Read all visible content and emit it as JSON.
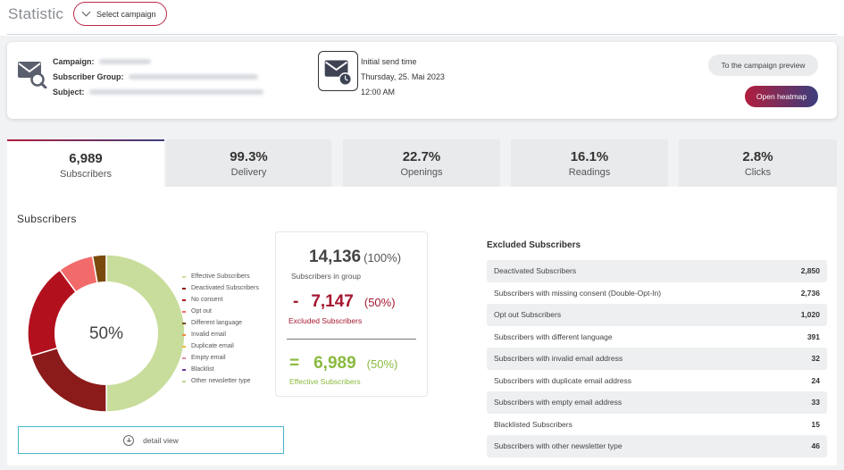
{
  "header": {
    "title": "Statistic",
    "select_campaign": "Select campaign"
  },
  "info": {
    "campaign_label": "Campaign:",
    "group_label": "Subscriber Group:",
    "subject_label": "Subject:",
    "send_title": "Initial send time",
    "send_date": "Thursday, 25. Mai 2023",
    "send_time": "12:00 AM",
    "preview_button": "To the campaign preview",
    "heatmap_button": "Open heatmap"
  },
  "tabs": [
    {
      "value": "6,989",
      "label": "Subscribers"
    },
    {
      "value": "99.3%",
      "label": "Delivery"
    },
    {
      "value": "22.7%",
      "label": "Openings"
    },
    {
      "value": "16.1%",
      "label": "Readings"
    },
    {
      "value": "2.8%",
      "label": "Clicks"
    }
  ],
  "subscribers": {
    "section_title": "Subscribers",
    "donut_center": "50%",
    "legend": [
      {
        "label": "Effective Subscribers",
        "color": "#c8dd9b"
      },
      {
        "label": "Deactivated Subscribers",
        "color": "#8b1a1a"
      },
      {
        "label": "No consent",
        "color": "#b3101e"
      },
      {
        "label": "Opt out",
        "color": "#f26b6b"
      },
      {
        "label": "Different language",
        "color": "#7a4a0c"
      },
      {
        "label": "Invalid email",
        "color": "#f08a40"
      },
      {
        "label": "Duplicate email",
        "color": "#e8c040"
      },
      {
        "label": "Empty email",
        "color": "#e58aa0"
      },
      {
        "label": "Blacklist",
        "color": "#6a3aa0"
      },
      {
        "label": "Other newsletter type",
        "color": "#b8d890"
      }
    ],
    "detail_button": "detail view"
  },
  "summary": {
    "total": "14,136",
    "total_pct": "(100%)",
    "group_label": "Subscribers in group",
    "excluded_sign": "-",
    "excluded": "7,147",
    "excluded_pct": "(50%)",
    "excluded_label": "Excluded Subscribers",
    "effective_sign": "=",
    "effective": "6,989",
    "effective_pct": "(50%)",
    "effective_label": "Effective Subscribers"
  },
  "excluded": {
    "title": "Excluded Subscribers",
    "rows": [
      {
        "label": "Deactivated Subscribers",
        "value": "2,850"
      },
      {
        "label": "Subscribers with missing consent (Double-Opt-In)",
        "value": "2,736"
      },
      {
        "label": "Opt out Subscribers",
        "value": "1,020"
      },
      {
        "label": "Subscribers with different language",
        "value": "391"
      },
      {
        "label": "Subscribers with invalid email address",
        "value": "32"
      },
      {
        "label": "Subscribers with duplicate email address",
        "value": "24"
      },
      {
        "label": "Subscribers with empty email address",
        "value": "33"
      },
      {
        "label": "Blacklisted Subscribers",
        "value": "15"
      },
      {
        "label": "Subscribers with other newsletter type",
        "value": "46"
      }
    ]
  },
  "chart_data": {
    "type": "pie",
    "categories": [
      "Effective Subscribers",
      "Deactivated Subscribers",
      "No consent",
      "Opt out",
      "Different language"
    ],
    "values": [
      6989,
      2850,
      2736,
      1020,
      391
    ],
    "colors": [
      "#c8dd9b",
      "#8b1a1a",
      "#b3101e",
      "#f26b6b",
      "#7a4a0c"
    ]
  }
}
